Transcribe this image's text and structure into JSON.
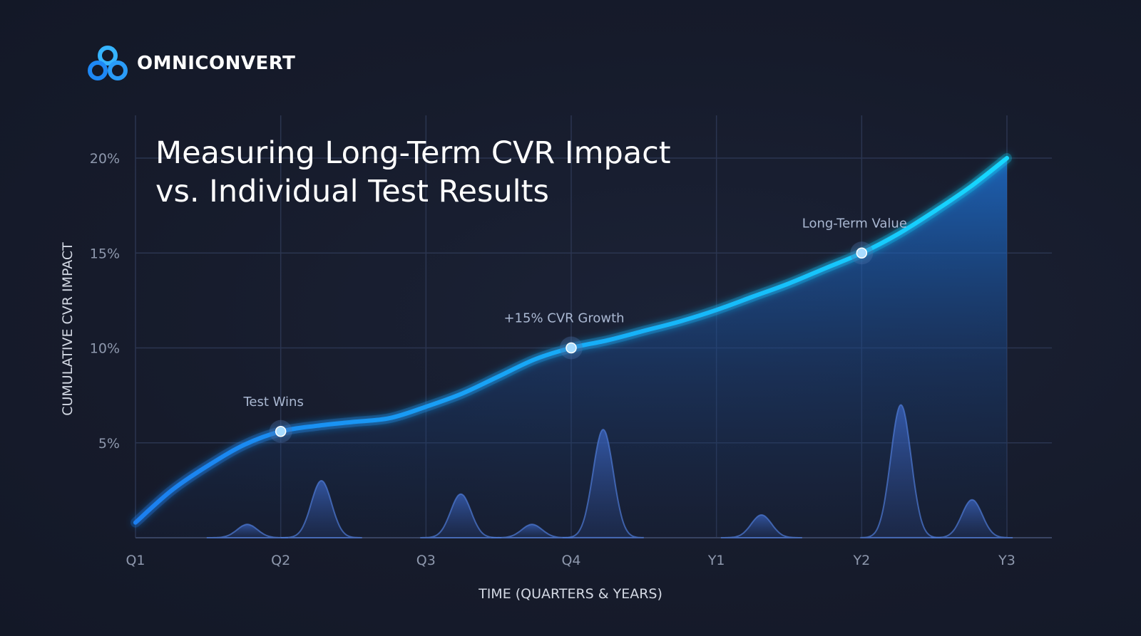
{
  "brand": {
    "name": "OMNICONVERT",
    "logo_icon": "three-circles-logo-icon",
    "logo_colors": [
      "#1e88f5",
      "#36b4ff"
    ]
  },
  "chart_data": {
    "type": "area",
    "title": "Measuring Long-Term CVR Impact\nvs. Individual Test Results",
    "xlabel": "TIME (QUARTERS & YEARS)",
    "ylabel": "CUMULATIVE CVR IMPACT",
    "categories": [
      "Q1",
      "Q2",
      "Q3",
      "Q4",
      "Y1",
      "Y2",
      "Y3"
    ],
    "xlim": [
      0,
      6
    ],
    "ylim": [
      0,
      20
    ],
    "y_ticks": [
      5,
      10,
      15,
      20
    ],
    "y_tick_format": "%",
    "grid": true,
    "series": [
      {
        "values": [
          {
            "x": 0.0,
            "y": 0.8
          },
          {
            "x": 0.25,
            "y": 2.5
          },
          {
            "x": 0.5,
            "y": 3.8
          },
          {
            "x": 0.75,
            "y": 4.9
          },
          {
            "x": 1.0,
            "y": 5.6
          },
          {
            "x": 1.25,
            "y": 5.9
          },
          {
            "x": 1.5,
            "y": 6.1
          },
          {
            "x": 1.75,
            "y": 6.3
          },
          {
            "x": 2.0,
            "y": 6.9
          },
          {
            "x": 2.25,
            "y": 7.6
          },
          {
            "x": 2.5,
            "y": 8.5
          },
          {
            "x": 2.75,
            "y": 9.4
          },
          {
            "x": 3.0,
            "y": 10.0
          },
          {
            "x": 3.25,
            "y": 10.4
          },
          {
            "x": 3.5,
            "y": 10.9
          },
          {
            "x": 3.75,
            "y": 11.4
          },
          {
            "x": 4.0,
            "y": 12.0
          },
          {
            "x": 4.25,
            "y": 12.7
          },
          {
            "x": 4.5,
            "y": 13.4
          },
          {
            "x": 4.75,
            "y": 14.2
          },
          {
            "x": 5.0,
            "y": 15.0
          },
          {
            "x": 5.25,
            "y": 16.0
          },
          {
            "x": 5.5,
            "y": 17.2
          },
          {
            "x": 5.75,
            "y": 18.5
          },
          {
            "x": 6.0,
            "y": 20.0
          }
        ]
      },
      {
        "type": "peaks",
        "values": [
          {
            "x": 0.77,
            "y": 0.7
          },
          {
            "x": 1.28,
            "y": 3.0
          },
          {
            "x": 2.24,
            "y": 2.3
          },
          {
            "x": 2.73,
            "y": 0.7
          },
          {
            "x": 3.22,
            "y": 5.7
          },
          {
            "x": 4.31,
            "y": 1.2
          },
          {
            "x": 5.27,
            "y": 7.0
          },
          {
            "x": 5.76,
            "y": 2.0
          }
        ]
      }
    ],
    "annotations": [
      {
        "label": "Test Wins",
        "x": 1.0,
        "y": 5.6
      },
      {
        "label": "+15% CVR Growth",
        "x": 3.0,
        "y": 10.0
      },
      {
        "label": "Long-Term Value",
        "x": 5.0,
        "y": 15.0
      }
    ],
    "colors": {
      "line_start": "#1a7ff0",
      "line_end": "#18d8ff",
      "area": "#1d6fd6",
      "peaks": "#3a63b8",
      "grid": "#2b3550",
      "marker": "#a9dcff"
    }
  }
}
